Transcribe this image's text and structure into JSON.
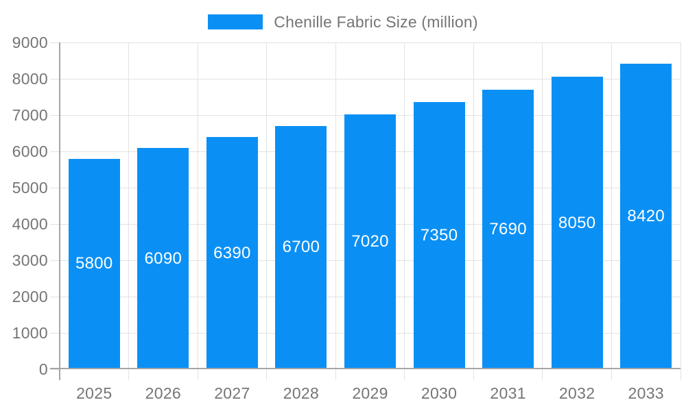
{
  "legend": {
    "label": "Chenille Fabric Size (million)"
  },
  "chart_data": {
    "type": "bar",
    "title": "Chenille Fabric Size (million)",
    "categories": [
      "2025",
      "2026",
      "2027",
      "2028",
      "2029",
      "2030",
      "2031",
      "2032",
      "2033"
    ],
    "values": [
      5800,
      6090,
      6390,
      6700,
      7020,
      7350,
      7690,
      8050,
      8420
    ],
    "series": [
      {
        "name": "Chenille Fabric Size (million)",
        "values": [
          5800,
          6090,
          6390,
          6700,
          7020,
          7350,
          7690,
          8050,
          8420
        ]
      }
    ],
    "value_labels": [
      "5800",
      "6090",
      "6390",
      "6700",
      "7020",
      "7350",
      "7690",
      "8050",
      "8420"
    ],
    "xlabel": "",
    "ylabel": "",
    "ylim": [
      0,
      9000
    ],
    "yticks": [
      0,
      1000,
      2000,
      3000,
      4000,
      5000,
      6000,
      7000,
      8000,
      9000
    ],
    "grid": true,
    "legend_position": "top-center",
    "bar_color": "#0a90f5",
    "value_label_color": "#ffffff",
    "axis_text_color": "#757575",
    "gridline_color": "#e2e2e2",
    "axis_line_color": "#a5a5a5",
    "background_color": "#ffffff"
  }
}
